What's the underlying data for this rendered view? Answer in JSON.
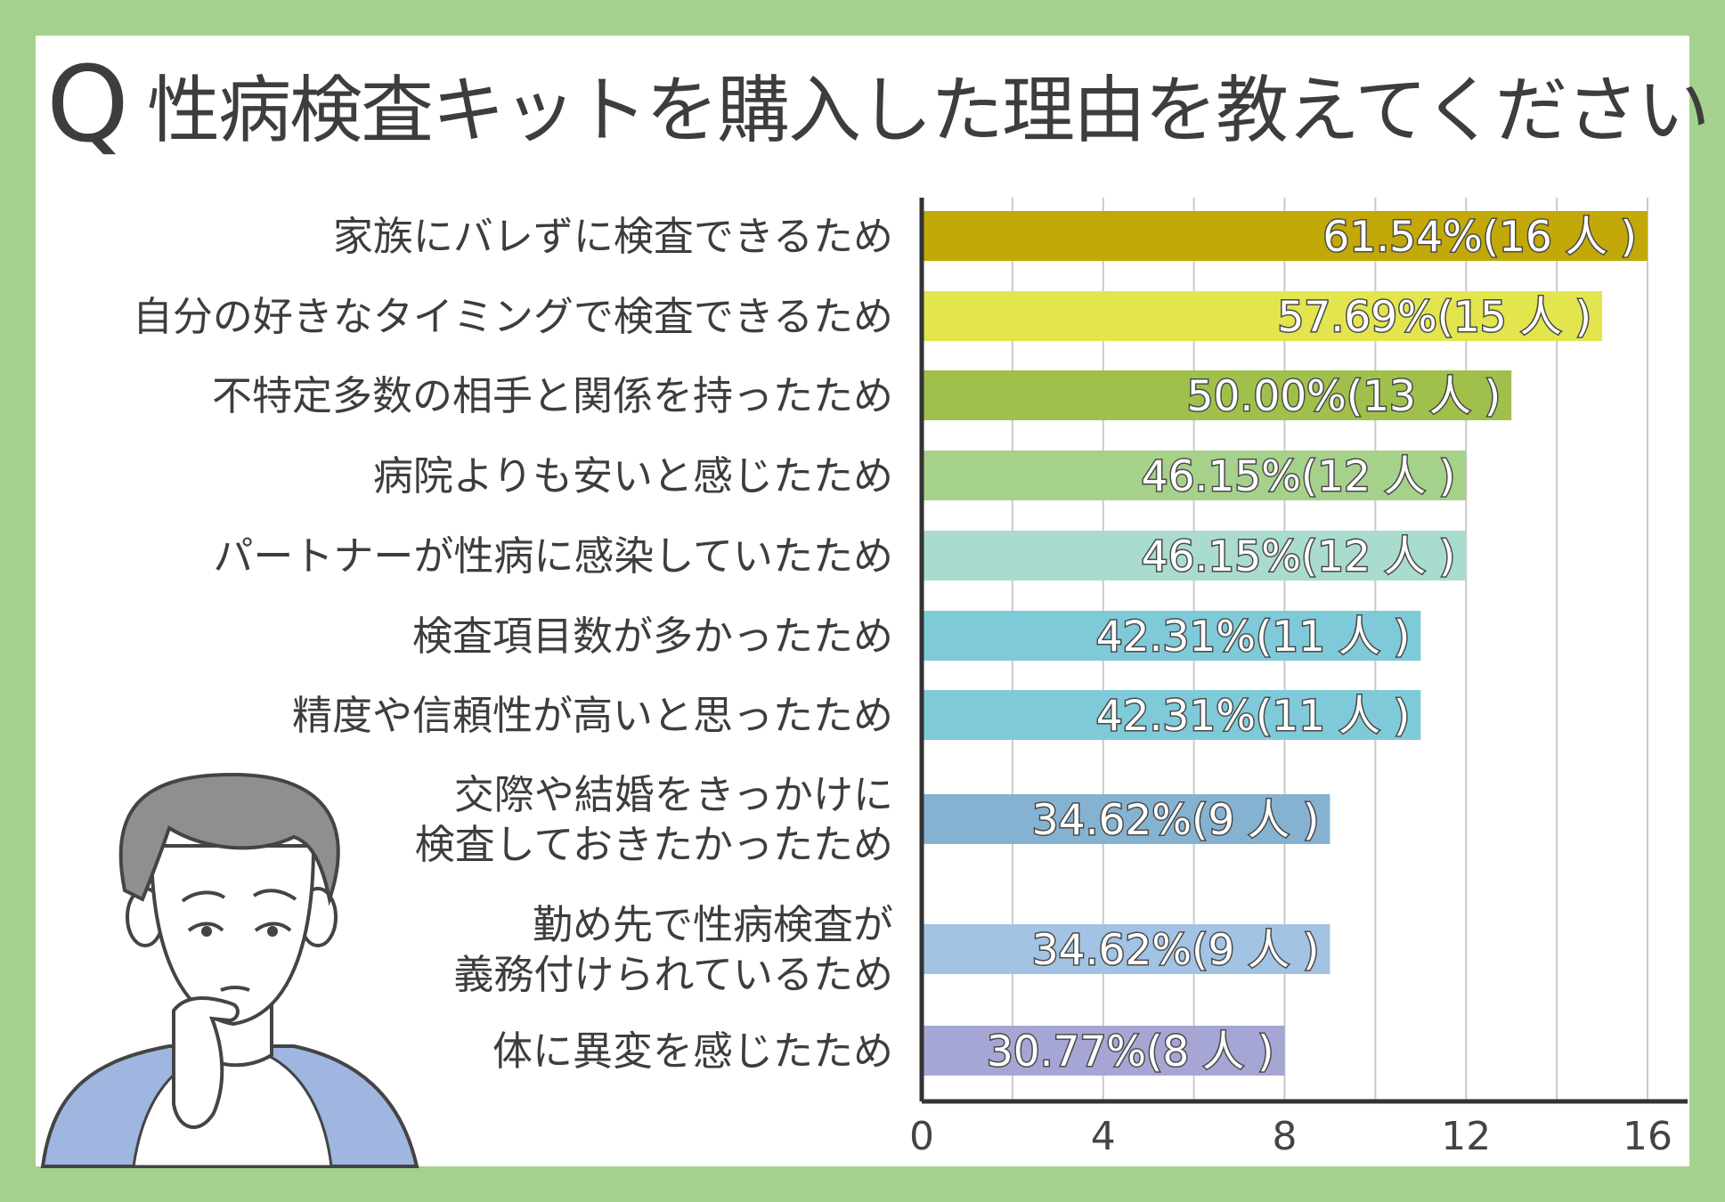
{
  "question": {
    "mark": "Q",
    "text": "性病検査キットを購入した理由を教えてください"
  },
  "chart_data": {
    "type": "bar",
    "orientation": "horizontal",
    "title": "性病検査キットを購入した理由を教えてください",
    "categories": [
      [
        "家族にバレずに検査できるため"
      ],
      [
        "自分の好きなタイミングで検査できるため"
      ],
      [
        "不特定多数の相手と関係を持ったため"
      ],
      [
        "病院よりも安いと感じたため"
      ],
      [
        "パートナーが性病に感染していたため"
      ],
      [
        "検査項目数が多かったため"
      ],
      [
        "精度や信頼性が高いと思ったため"
      ],
      [
        "交際や結婚をきっかけに",
        "検査しておきたかったため"
      ],
      [
        "勤め先で性病検査が",
        "義務付けられているため"
      ],
      [
        "体に異変を感じたため"
      ]
    ],
    "values": [
      16,
      15,
      13,
      12,
      12,
      11,
      11,
      9,
      9,
      8
    ],
    "value_labels": [
      "61.54%(16 人 )",
      "57.69%(15 人 )",
      "50.00%(13 人 )",
      "46.15%(12 人 )",
      "46.15%(12 人 )",
      "42.31%(11 人 )",
      "42.31%(11 人 )",
      "34.62%(9 人 )",
      "34.62%(9 人 )",
      "30.77%(8 人 )"
    ],
    "bar_colors": [
      "#c2a908",
      "#e3e54f",
      "#a0c04b",
      "#a6d18b",
      "#a9dccf",
      "#7fcad9",
      "#7fcad9",
      "#86b2d2",
      "#a2c3e3",
      "#a5a6d4"
    ],
    "xlim": [
      0,
      16
    ],
    "x_ticks": [
      0,
      4,
      8,
      12,
      16
    ],
    "grid": true
  },
  "character": {
    "name": "thinking-person",
    "hair_color": "#8a8a8a",
    "shirt_color": "#9eb6e0",
    "skin_color": "#ffffff"
  }
}
